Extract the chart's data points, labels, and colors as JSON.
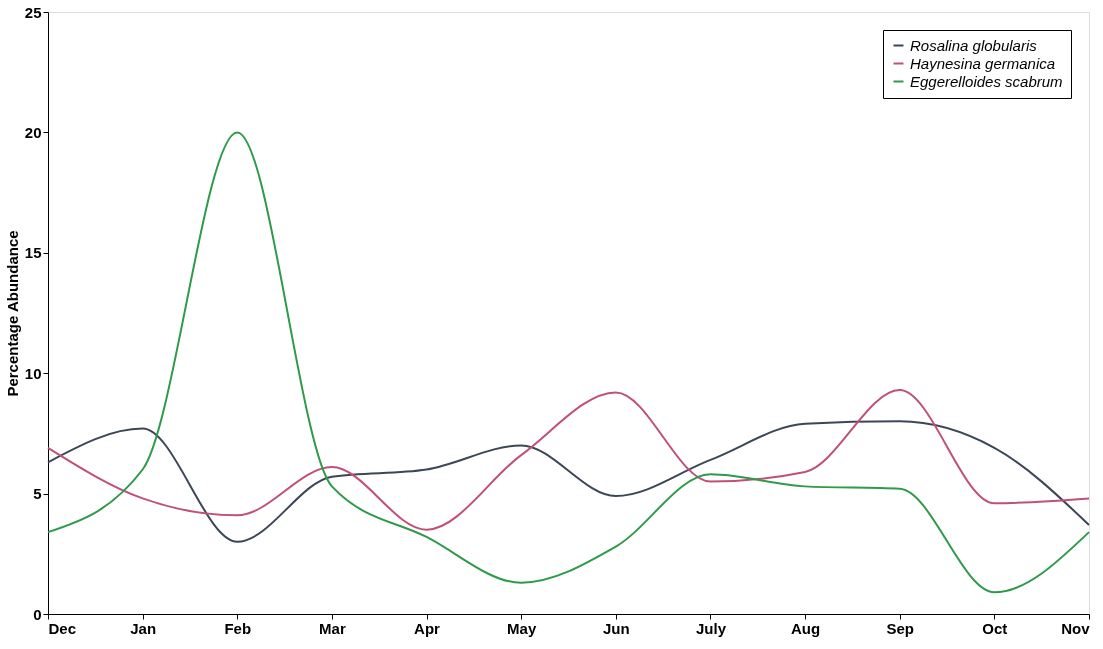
{
  "chart_data": {
    "type": "line",
    "ylabel": "Percentage Abundance",
    "categories": [
      "Dec",
      "Jan",
      "Feb",
      "Mar",
      "Apr",
      "May",
      "Jun",
      "July",
      "Aug",
      "Sep",
      "Oct",
      "Nov"
    ],
    "series": [
      {
        "name": "Rosalina globularis",
        "color": "#3b4656",
        "values": [
          6.3,
          7.7,
          3.0,
          5.7,
          6.0,
          7.0,
          4.9,
          6.4,
          7.9,
          8.0,
          6.9,
          3.7
        ]
      },
      {
        "name": "Haynesina germanica",
        "color": "#c0507a",
        "values": [
          6.9,
          4.8,
          4.1,
          6.1,
          3.5,
          6.6,
          9.2,
          5.5,
          5.9,
          9.3,
          4.6,
          4.8
        ]
      },
      {
        "name": "Eggerelloides scabrum",
        "color": "#2e9a4a",
        "values": [
          3.4,
          6.0,
          20.0,
          5.3,
          3.2,
          1.3,
          2.8,
          5.8,
          5.3,
          5.2,
          0.9,
          3.4
        ]
      }
    ],
    "ylim": [
      0,
      25
    ],
    "yticks": [
      0,
      5,
      10,
      15,
      20,
      25
    ],
    "legend": "top right",
    "grid": false,
    "marker": "none",
    "line_style": "solid"
  }
}
